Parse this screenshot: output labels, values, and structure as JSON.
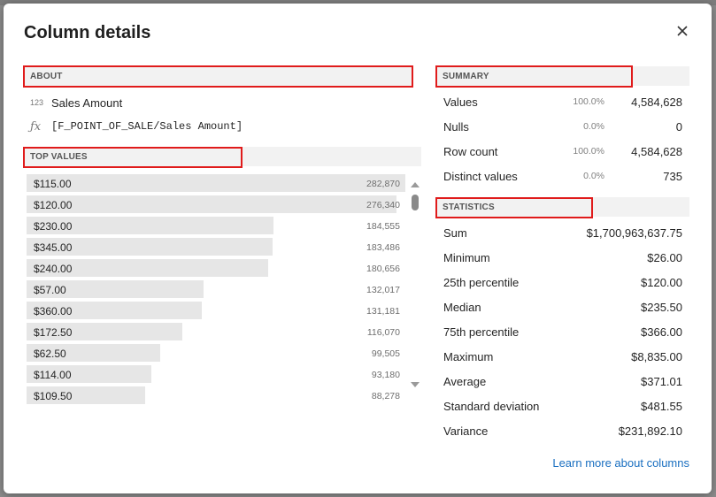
{
  "dialog": {
    "title": "Column details"
  },
  "about": {
    "header": "ABOUT",
    "type_icon": "123",
    "field_name": "Sales Amount",
    "expression": "[F_POINT_OF_SALE/Sales Amount]"
  },
  "top_values": {
    "header": "TOP VALUES",
    "max_count": 282870,
    "items": [
      {
        "value": "$115.00",
        "count": "282,870",
        "n": 282870
      },
      {
        "value": "$120.00",
        "count": "276,340",
        "n": 276340
      },
      {
        "value": "$230.00",
        "count": "184,555",
        "n": 184555
      },
      {
        "value": "$345.00",
        "count": "183,486",
        "n": 183486
      },
      {
        "value": "$240.00",
        "count": "180,656",
        "n": 180656
      },
      {
        "value": "$57.00",
        "count": "132,017",
        "n": 132017
      },
      {
        "value": "$360.00",
        "count": "131,181",
        "n": 131181
      },
      {
        "value": "$172.50",
        "count": "116,070",
        "n": 116070
      },
      {
        "value": "$62.50",
        "count": "99,505",
        "n": 99505
      },
      {
        "value": "$114.00",
        "count": "93,180",
        "n": 93180
      },
      {
        "value": "$109.50",
        "count": "88,278",
        "n": 88278
      }
    ]
  },
  "summary": {
    "header": "SUMMARY",
    "rows": [
      {
        "label": "Values",
        "pct": "100.0%",
        "value": "4,584,628"
      },
      {
        "label": "Nulls",
        "pct": "0.0%",
        "value": "0"
      },
      {
        "label": "Row count",
        "pct": "100.0%",
        "value": "4,584,628"
      },
      {
        "label": "Distinct values",
        "pct": "0.0%",
        "value": "735"
      }
    ]
  },
  "statistics": {
    "header": "STATISTICS",
    "rows": [
      {
        "label": "Sum",
        "value": "$1,700,963,637.75"
      },
      {
        "label": "Minimum",
        "value": "$26.00"
      },
      {
        "label": "25th percentile",
        "value": "$120.00"
      },
      {
        "label": "Median",
        "value": "$235.50"
      },
      {
        "label": "75th percentile",
        "value": "$366.00"
      },
      {
        "label": "Maximum",
        "value": "$8,835.00"
      },
      {
        "label": "Average",
        "value": "$371.01"
      },
      {
        "label": "Standard deviation",
        "value": "$481.55"
      },
      {
        "label": "Variance",
        "value": "$231,892.10"
      }
    ]
  },
  "footer": {
    "link": "Learn more about columns"
  },
  "colors": {
    "highlight": "#e01b1b",
    "link": "#1a6fc0",
    "bar": "#e6e6e6"
  }
}
